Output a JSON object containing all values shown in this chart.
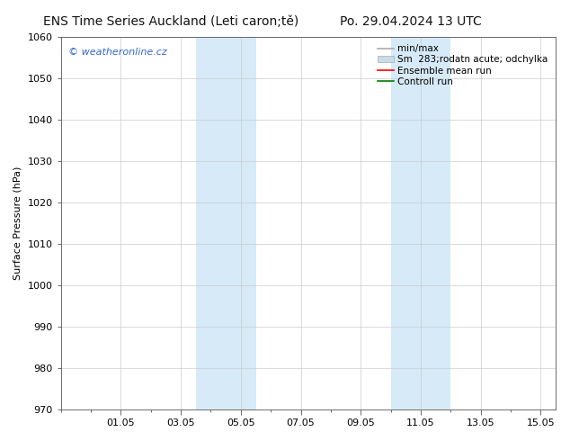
{
  "title_left": "ENS Time Series Auckland (Leti caron;tě)",
  "title_right": "Po. 29.04.2024 13 UTC",
  "ylabel": "Surface Pressure (hPa)",
  "ylim": [
    970,
    1060
  ],
  "yticks": [
    970,
    980,
    990,
    1000,
    1010,
    1020,
    1030,
    1040,
    1050,
    1060
  ],
  "xtick_labels": [
    "01.05",
    "03.05",
    "05.05",
    "07.05",
    "09.05",
    "11.05",
    "13.05",
    "15.05"
  ],
  "xtick_positions": [
    2,
    4,
    6,
    8,
    10,
    12,
    14,
    16
  ],
  "xlim": [
    0,
    16.5
  ],
  "shaded_regions": [
    {
      "x_start": 4.5,
      "x_end": 5.0,
      "color": "#d6eaf8"
    },
    {
      "x_start": 5.0,
      "x_end": 6.5,
      "color": "#d6eaf8"
    },
    {
      "x_start": 11.0,
      "x_end": 11.5,
      "color": "#d6eaf8"
    },
    {
      "x_start": 11.5,
      "x_end": 13.0,
      "color": "#d6eaf8"
    }
  ],
  "watermark_text": "© weatheronline.cz",
  "watermark_color": "#3366cc",
  "background_color": "#ffffff",
  "grid_color": "#cccccc",
  "tick_color": "#333333",
  "font_size": 8,
  "ylabel_fontsize": 8,
  "title_font_size": 10,
  "legend_fontsize": 7.5,
  "shaded_color": "#d6eaf8",
  "legend_min_max_color": "#aaaaaa",
  "legend_band_color": "#c8dce8",
  "legend_mean_color": "red",
  "legend_control_color": "green"
}
